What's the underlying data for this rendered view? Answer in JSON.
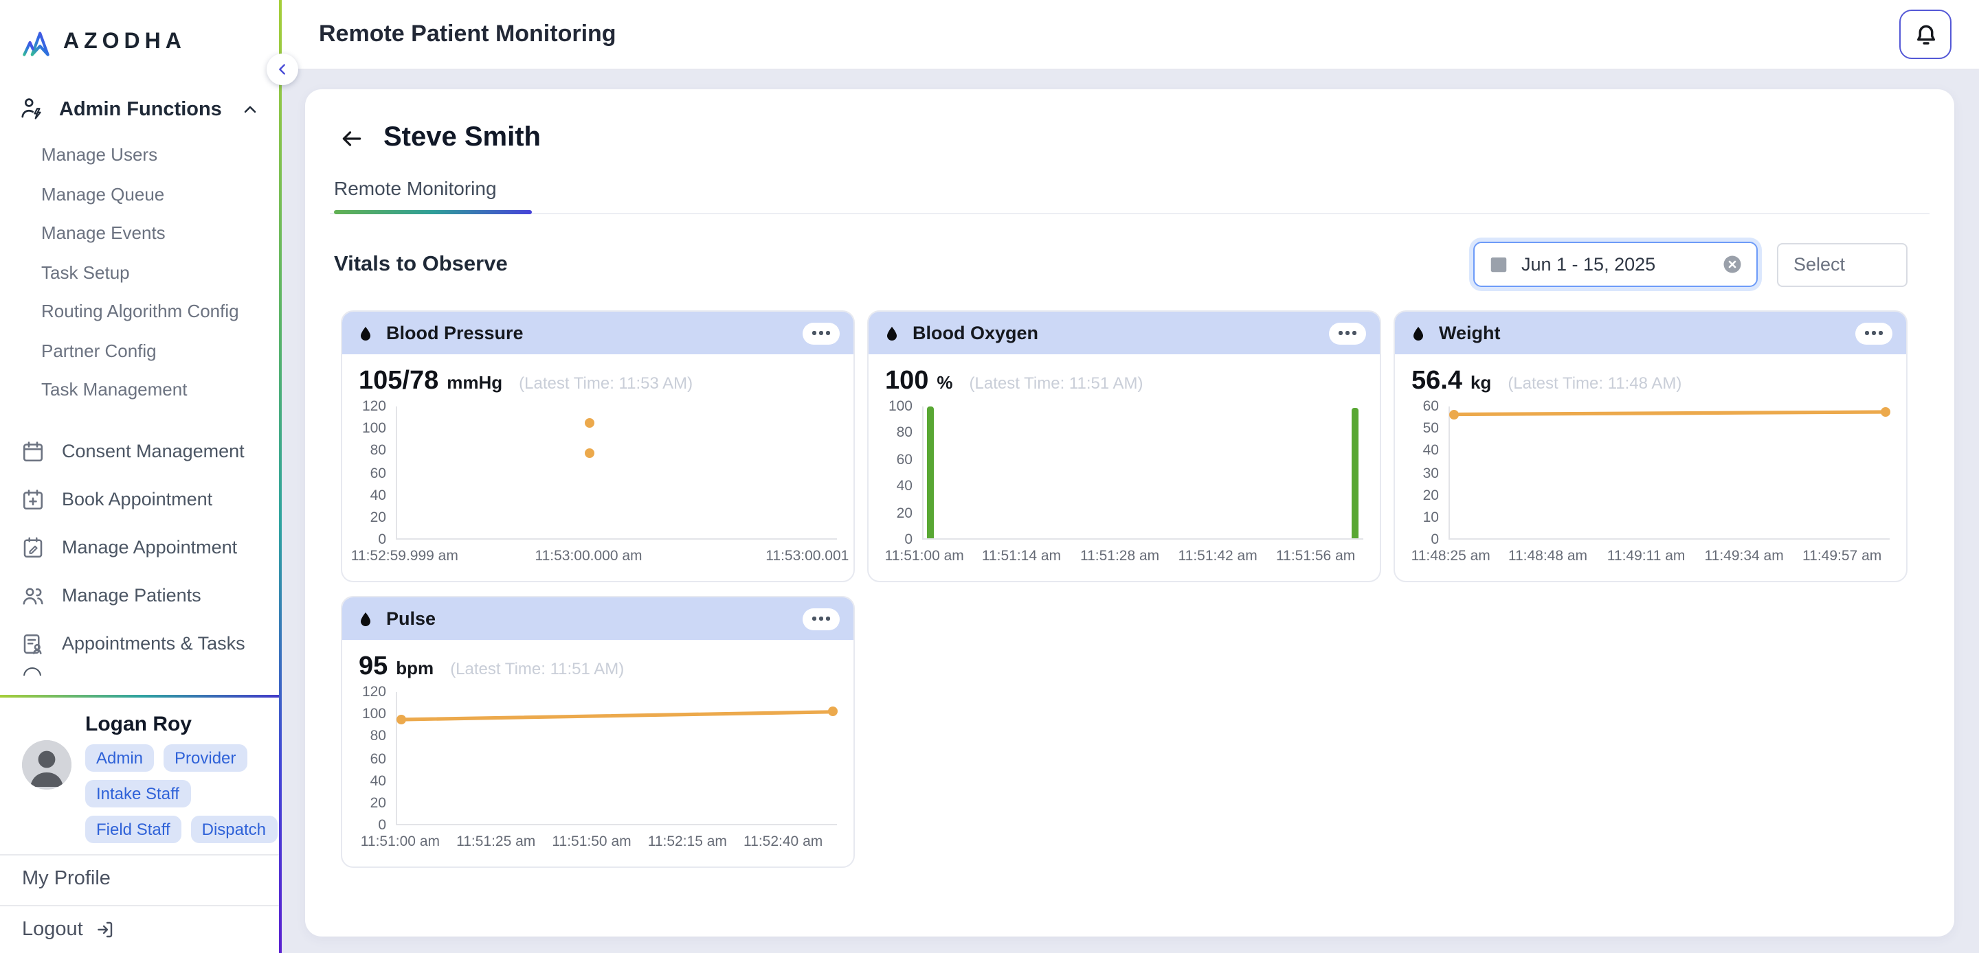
{
  "brand": {
    "name": "AZODHA"
  },
  "sidebar": {
    "admin": {
      "label": "Admin Functions",
      "items": [
        "Manage Users",
        "Manage Queue",
        "Manage Events",
        "Task Setup",
        "Routing Algorithm Config",
        "Partner Config",
        "Task Management"
      ]
    },
    "menu": [
      {
        "label": "Consent Management",
        "icon": "calendar-icon"
      },
      {
        "label": "Book Appointment",
        "icon": "calendar-plus-icon"
      },
      {
        "label": "Manage Appointment",
        "icon": "calendar-edit-icon"
      },
      {
        "label": "Manage Patients",
        "icon": "users-icon"
      },
      {
        "label": "Appointments & Tasks",
        "icon": "clipboard-person-icon"
      }
    ],
    "profile": {
      "name": "Logan Roy",
      "role_rows": [
        [
          "Admin",
          "Provider"
        ],
        [
          "Intake Staff"
        ],
        [
          "Field Staff",
          "Dispatch"
        ]
      ],
      "my_profile": "My Profile",
      "logout": "Logout"
    }
  },
  "header": {
    "title": "Remote Patient Monitoring"
  },
  "patient": {
    "name": "Steve Smith",
    "tab": "Remote Monitoring",
    "section_title": "Vitals to Observe",
    "date_range": "Jun 1 - 15, 2025",
    "select_placeholder": "Select"
  },
  "colors": {
    "vital_header_bg": "#ccd8f6",
    "accent_gradient": [
      "#a6ce39",
      "#2fa3a0",
      "#4338ca"
    ],
    "badge_bg": "#dbe4f8",
    "badge_text": "#2f62d8",
    "orange_series": "#eca94c",
    "green_series": "#58a733"
  },
  "chart_data": [
    {
      "type": "scatter",
      "title": "Blood Pressure",
      "reading": "105/78",
      "unit": "mmHg",
      "latest_time": "(Latest Time: 11:53 AM)",
      "color": "#eca94c",
      "ylim": [
        0,
        120
      ],
      "yticks": [
        120,
        100,
        80,
        60,
        40,
        20,
        0
      ],
      "xlabels": [
        {
          "text": "11:52:59.999 am",
          "pos": 2
        },
        {
          "text": "11:53:00.000 am",
          "pos": 43.7
        },
        {
          "text": "11:53:00.001 am",
          "pos": 96
        }
      ],
      "points": [
        {
          "series": "systolic",
          "time": "11:53:00.000 am",
          "x": 43.7,
          "value": 105
        },
        {
          "series": "diastolic",
          "time": "11:53:00.000 am",
          "x": 43.7,
          "value": 78
        }
      ],
      "grid": false,
      "legend": false
    },
    {
      "type": "bar",
      "title": "Blood Oxygen",
      "reading": "100",
      "unit": "%",
      "latest_time": "(Latest Time: 11:51 AM)",
      "color": "#58a733",
      "ylim": [
        0,
        100
      ],
      "yticks": [
        100,
        80,
        60,
        40,
        20,
        0
      ],
      "xlabels": [
        {
          "text": "11:51:00 am",
          "pos": 0.5
        },
        {
          "text": "11:51:14 am",
          "pos": 22.5
        },
        {
          "text": "11:51:28 am",
          "pos": 44.8
        },
        {
          "text": "11:51:42 am",
          "pos": 67
        },
        {
          "text": "11:51:56 am",
          "pos": 89.2
        }
      ],
      "points": [
        {
          "time": "11:51:00 am",
          "x": 1.5,
          "value": 100
        },
        {
          "x": 98.2,
          "value": 99
        }
      ],
      "grid": false,
      "legend": false
    },
    {
      "type": "line",
      "title": "Weight",
      "reading": "56.4",
      "unit": "kg",
      "latest_time": "(Latest Time: 11:48 AM)",
      "color": "#eca94c",
      "ylim": [
        0,
        60
      ],
      "yticks": [
        60,
        50,
        40,
        30,
        20,
        10,
        0
      ],
      "xlabels": [
        {
          "text": "11:48:25 am",
          "pos": 0.5
        },
        {
          "text": "11:48:48 am",
          "pos": 22.5
        },
        {
          "text": "11:49:11 am",
          "pos": 44.8
        },
        {
          "text": "11:49:34 am",
          "pos": 67
        },
        {
          "text": "11:49:57 am",
          "pos": 89.2
        }
      ],
      "points": [
        {
          "time": "11:48:25 am",
          "x": 1,
          "value": 56.4
        },
        {
          "x": 99,
          "value": 57.5
        }
      ],
      "grid": false,
      "legend": false
    },
    {
      "type": "line",
      "title": "Pulse",
      "reading": "95",
      "unit": "bpm",
      "latest_time": "(Latest Time: 11:51 AM)",
      "color": "#eca94c",
      "ylim": [
        0,
        120
      ],
      "yticks": [
        120,
        100,
        80,
        60,
        40,
        20,
        0
      ],
      "xlabels": [
        {
          "text": "11:51:00 am",
          "pos": 1
        },
        {
          "text": "11:51:25 am",
          "pos": 22.7
        },
        {
          "text": "11:51:50 am",
          "pos": 44.4
        },
        {
          "text": "11:52:15 am",
          "pos": 66.1
        },
        {
          "text": "11:52:40 am",
          "pos": 87.8
        }
      ],
      "points": [
        {
          "time": "11:51:00 am",
          "x": 1,
          "value": 95
        },
        {
          "x": 99,
          "value": 102
        }
      ],
      "grid": false,
      "legend": false
    }
  ]
}
